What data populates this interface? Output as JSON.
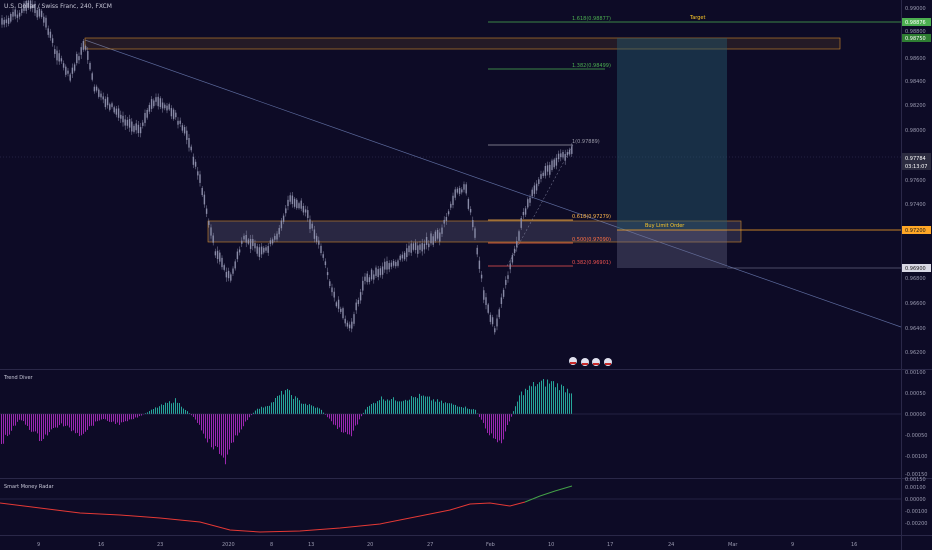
{
  "header": {
    "symbol_title": "U.S. Dollar / Swiss Franc, 240, FXCM"
  },
  "colors": {
    "background": "#0d0b26",
    "candle": "#8a8ca8",
    "target_line": "#4caf50",
    "entry_line": "#ffa726",
    "fib_0382": "#ef5350",
    "fib_0500": "#ff7043",
    "fib_0618": "#ffb74d",
    "zone": "#d08a2a",
    "trend_pos": "#26a69a",
    "trend_neg": "#9c27b0",
    "radar_down": "#e53935",
    "radar_up": "#43a047"
  },
  "main_pane": {
    "y_ticks": [
      "0.99000",
      "0.98800",
      "0.98600",
      "0.98400",
      "0.98200",
      "0.98000",
      "0.97600",
      "0.97400",
      "0.96800",
      "0.96600",
      "0.96400",
      "0.96200"
    ],
    "price_tags": {
      "top_green": "0.98876",
      "zone_top": "0.98750",
      "current": "0.97784",
      "countdown": "03:13:07",
      "entry": "0.97200",
      "stop": "0.96900"
    },
    "fib_labels": {
      "f1618": "1.618(0.98877)",
      "f1382": "1.382(0.98499)",
      "f1": "1(0.97889)",
      "f0618": "0.618(0.97279)",
      "f0500": "0.500(0.97090)",
      "f0382": "0.382(0.96901)"
    },
    "annotations": {
      "target": "Target",
      "buy_limit": "Buy Limit Order"
    }
  },
  "trend_diver": {
    "title": "Trend Diver",
    "y_ticks": [
      "0.00100",
      "0.00050",
      "0.00000",
      "-0.00050",
      "-0.00100",
      "-0.00150"
    ]
  },
  "smart_money_radar": {
    "title": "Smart Money Radar",
    "y_ticks": [
      "0.00150",
      "0.00100",
      "0.00000",
      "-0.00100",
      "-0.00200"
    ]
  },
  "time_axis": {
    "labels": [
      "9",
      "16",
      "23",
      "2020",
      "8",
      "13",
      "20",
      "27",
      "Feb",
      "10",
      "17",
      "24",
      "Mar",
      "9",
      "16"
    ]
  },
  "chart_data": [
    {
      "type": "line",
      "title": "U.S. Dollar / Swiss Franc, 240, FXCM",
      "x": [
        "9",
        "16",
        "23",
        "2020",
        "8",
        "13",
        "20",
        "27",
        "Feb",
        "10"
      ],
      "series": [
        {
          "values": [
            0.988,
            0.985,
            0.9825,
            0.979,
            0.972,
            0.97,
            0.9675,
            0.9745,
            0.966,
            0.978
          ]
        }
      ],
      "ylim": [
        0.961,
        0.9905
      ]
    },
    {
      "type": "bar",
      "title": "Trend Diver",
      "ylim": [
        -0.0015,
        0.001
      ]
    },
    {
      "type": "line",
      "title": "Smart Money Radar",
      "ylim": [
        -0.0022,
        0.0016
      ]
    }
  ]
}
